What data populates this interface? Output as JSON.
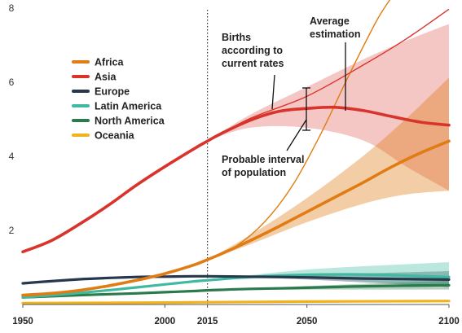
{
  "chart_data": {
    "type": "line",
    "title": "",
    "xlabel": "",
    "ylabel": "",
    "xlim": [
      1950,
      2100
    ],
    "ylim": [
      0,
      8
    ],
    "x_ticks": [
      1950,
      2000,
      2015,
      2050,
      2100
    ],
    "y_ticks": [
      2,
      4,
      6,
      8
    ],
    "grid": false,
    "legend_position": "upper-left",
    "reference_line": {
      "x": 2015,
      "style": "dotted"
    },
    "series": [
      {
        "name": "Africa",
        "color": "#e07c13",
        "x": [
          1950,
          1960,
          1970,
          1980,
          1990,
          2000,
          2010,
          2015,
          2020,
          2030,
          2040,
          2050,
          2060,
          2070,
          2080,
          2090,
          2100
        ],
        "values": [
          0.23,
          0.28,
          0.36,
          0.48,
          0.63,
          0.81,
          1.04,
          1.19,
          1.35,
          1.7,
          2.08,
          2.48,
          2.88,
          3.28,
          3.7,
          4.07,
          4.39
        ],
        "interval": {
          "x": [
            2015,
            2030,
            2050,
            2070,
            2085,
            2100
          ],
          "low": [
            1.19,
            1.6,
            2.2,
            2.7,
            2.95,
            3.05
          ],
          "high": [
            1.19,
            1.85,
            2.85,
            4.0,
            5.0,
            6.1
          ]
        },
        "current_rates": {
          "x": [
            2015,
            2025,
            2035,
            2045,
            2055,
            2065,
            2075,
            2082
          ],
          "values": [
            1.19,
            1.55,
            2.2,
            3.2,
            4.6,
            6.2,
            7.7,
            8.5
          ]
        }
      },
      {
        "name": "Asia",
        "color": "#d9342b",
        "x": [
          1950,
          1960,
          1970,
          1980,
          1990,
          2000,
          2010,
          2015,
          2020,
          2030,
          2040,
          2050,
          2060,
          2070,
          2080,
          2090,
          2100
        ],
        "values": [
          1.4,
          1.7,
          2.15,
          2.65,
          3.2,
          3.7,
          4.17,
          4.39,
          4.6,
          4.95,
          5.19,
          5.27,
          5.3,
          5.21,
          5.05,
          4.9,
          4.82
        ],
        "interval": {
          "x": [
            2015,
            2030,
            2050,
            2070,
            2085,
            2100
          ],
          "low": [
            4.39,
            4.75,
            4.75,
            4.4,
            3.7,
            3.05
          ],
          "high": [
            4.39,
            5.1,
            5.85,
            6.6,
            7.1,
            7.55
          ]
        },
        "current_rates": {
          "x": [
            2015,
            2030,
            2050,
            2070,
            2085,
            2100
          ],
          "values": [
            4.39,
            5.0,
            5.6,
            6.45,
            7.15,
            7.95
          ]
        }
      },
      {
        "name": "Europe",
        "color": "#27384e",
        "x": [
          1950,
          1970,
          1990,
          2000,
          2010,
          2015,
          2030,
          2050,
          2070,
          2100
        ],
        "values": [
          0.55,
          0.66,
          0.72,
          0.73,
          0.74,
          0.74,
          0.73,
          0.71,
          0.68,
          0.65
        ],
        "interval": {
          "x": [
            2015,
            2050,
            2100
          ],
          "low": [
            0.74,
            0.65,
            0.45
          ],
          "high": [
            0.74,
            0.78,
            0.88
          ]
        }
      },
      {
        "name": "Latin America",
        "color": "#3fb9a0",
        "x": [
          1950,
          1970,
          1990,
          2000,
          2010,
          2015,
          2030,
          2050,
          2070,
          2100
        ],
        "values": [
          0.17,
          0.29,
          0.44,
          0.52,
          0.6,
          0.63,
          0.72,
          0.78,
          0.79,
          0.72
        ],
        "interval": {
          "x": [
            2015,
            2050,
            2100
          ],
          "low": [
            0.63,
            0.68,
            0.45
          ],
          "high": [
            0.63,
            0.92,
            1.12
          ]
        }
      },
      {
        "name": "North America",
        "color": "#2a7a4b",
        "x": [
          1950,
          1970,
          1990,
          2000,
          2010,
          2015,
          2030,
          2050,
          2070,
          2100
        ],
        "values": [
          0.17,
          0.23,
          0.28,
          0.31,
          0.34,
          0.36,
          0.4,
          0.43,
          0.47,
          0.5
        ],
        "interval": {
          "x": [
            2015,
            2050,
            2100
          ],
          "low": [
            0.36,
            0.38,
            0.38
          ],
          "high": [
            0.36,
            0.48,
            0.62
          ]
        }
      },
      {
        "name": "Oceania",
        "color": "#f2b21b",
        "x": [
          1950,
          2000,
          2015,
          2050,
          2100
        ],
        "values": [
          0.013,
          0.031,
          0.039,
          0.057,
          0.072
        ]
      }
    ],
    "annotations": {
      "births_current_rates": "Births according to current rates",
      "average_estimation": "Average estimation",
      "probable_interval": "Probable interval of population"
    }
  }
}
